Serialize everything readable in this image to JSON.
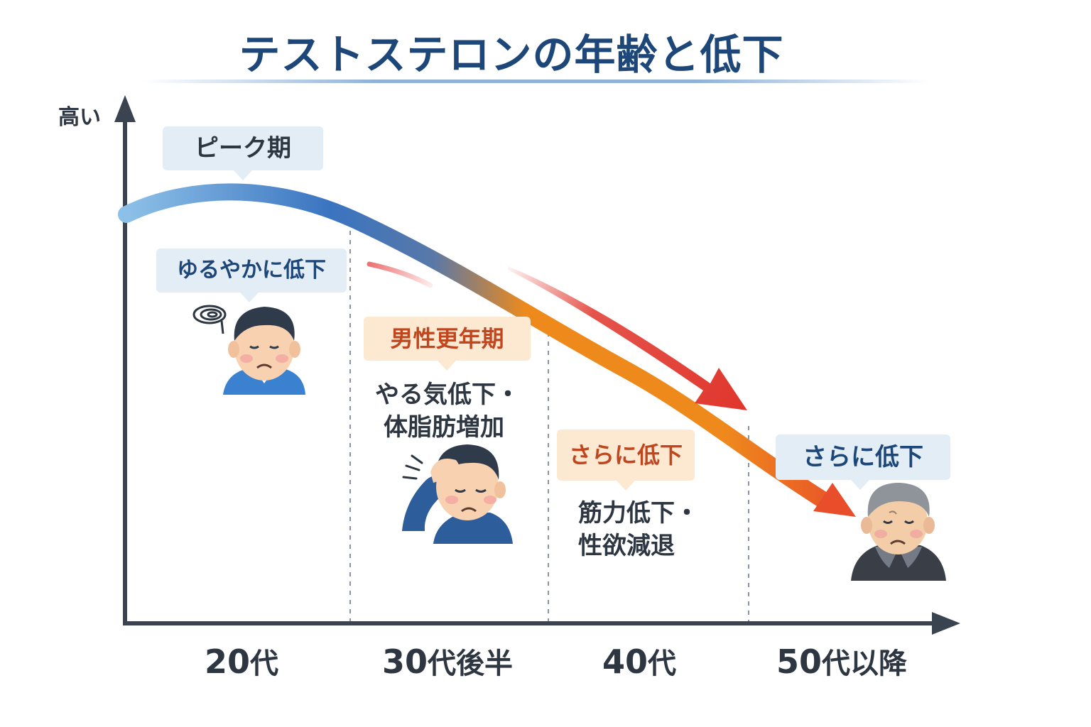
{
  "title": "テストステロンの年齢と低下",
  "y_axis": {
    "high_label": "高い"
  },
  "x_axis": {
    "labels": [
      {
        "num": "20",
        "suffix": "代"
      },
      {
        "num": "30",
        "suffix": "代後半"
      },
      {
        "num": "40",
        "suffix": "代"
      },
      {
        "num": "50",
        "suffix": "代以降"
      }
    ]
  },
  "callouts": {
    "peak": "ピーク期",
    "gradual": "ゆるやかに低下",
    "andropause": "男性更年期",
    "further_40s": "さらに低下",
    "further_50s": "さらに低下"
  },
  "notes": {
    "late30s": [
      "やる気低下・",
      "体脂肪増加"
    ],
    "forties": [
      "筋力低下・",
      "性欲減退"
    ]
  },
  "colors": {
    "title": "#1d4679",
    "curve_start": "#8cc0e8",
    "curve_mid": "#3a74c0",
    "curve_orange": "#ee8a1c",
    "curve_end": "#e94e2a",
    "red_arrow": "#e0362c",
    "axis": "#3a4350",
    "bubble_blue": "#e3edf6",
    "bubble_orange": "#fde9d2",
    "accent_text_orange": "#c0461f",
    "accent_text_blue": "#1d4679"
  },
  "icons": [
    "dizzy-icon",
    "stress-lines-icon"
  ]
}
